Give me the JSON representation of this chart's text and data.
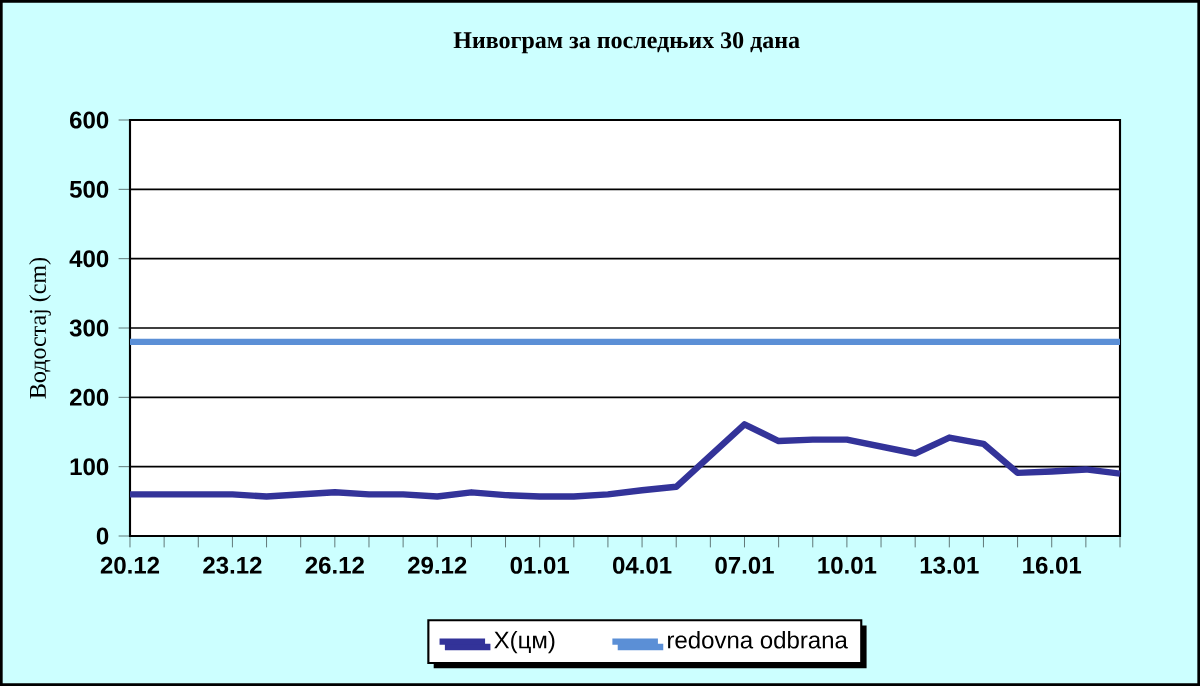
{
  "chart_data": {
    "type": "line",
    "title": "Нивограм за последњих 30 дана",
    "ylabel": "Водостај (cm)",
    "categories": [
      "20.12",
      null,
      null,
      "23.12",
      null,
      null,
      "26.12",
      null,
      null,
      "29.12",
      null,
      null,
      "01.01",
      null,
      null,
      "04.01",
      null,
      null,
      "07.01",
      null,
      null,
      "10.01",
      null,
      null,
      "13.01",
      null,
      null,
      "16.01",
      null,
      null
    ],
    "series": [
      {
        "name": "X(цм)",
        "color": "#333399",
        "values": [
          60,
          60,
          60,
          60,
          57,
          60,
          63,
          60,
          60,
          57,
          63,
          59,
          57,
          57,
          60,
          66,
          71,
          116,
          161,
          137,
          139,
          139,
          129,
          119,
          142,
          133,
          91,
          93,
          96,
          90
        ]
      },
      {
        "name": "redovna odbrana",
        "color": "#5b8fd6",
        "values": [
          280,
          280,
          280,
          280,
          280,
          280,
          280,
          280,
          280,
          280,
          280,
          280,
          280,
          280,
          280,
          280,
          280,
          280,
          280,
          280,
          280,
          280,
          280,
          280,
          280,
          280,
          280,
          280,
          280,
          280
        ]
      }
    ],
    "ylim": [
      0,
      600
    ],
    "yticks": [
      0,
      100,
      200,
      300,
      400,
      500,
      600
    ],
    "grid": "y",
    "legend": "bottom",
    "line_style": "solid",
    "marker": "none"
  }
}
